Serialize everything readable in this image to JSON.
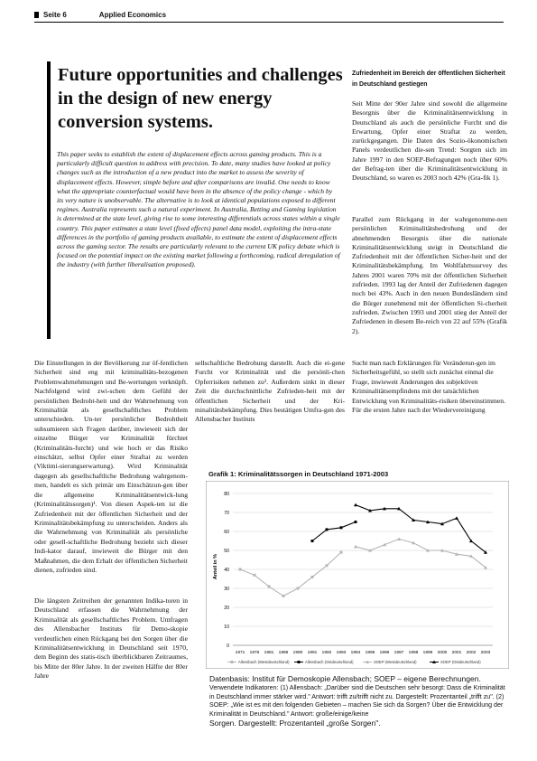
{
  "header": {
    "page": "Seite 6",
    "publication": "Applied Economics"
  },
  "article": {
    "title": "Future opportunities and challenges in the design of new energy conversion systems.",
    "abstract": "This paper seeks to establish the extent of displacement effects across gaming products. This is a particularly difficult question to address with precision. To date, many studies have looked at policy changes such as the introduction of a new product into the market to assess the severity of displacement effects. However, simple before and after comparisons are invalid. One needs to know what the appropriate counterfactual would have been in the absence of the policy change - which by its very nature is unobservable. The alternative is to look at identical populations exposed to different regimes.  Australia represents such a natural experiment. In Australia, Betting and Gaming legislation is determined at the state level, giving rise to some interesting differentials across states within a single country. This paper estimates a state level (fixed effects) panel data model, exploiting the intra-state differences in the portfolio of gaming products available, to estimate the extent of displacement effects across the gaming sector. The results are particularly relevant to the current UK policy debate which is focused on the potential impact on the existing market following a forthcoming, radical deregulation of the industry (with further liberalisation proposed)."
  },
  "right_column": {
    "heading": "Zufriedenheit im Bereich der öffentlichen Sicherheit in Deutschland gestiegen",
    "para1": "Seit Mitte der 90er Jahre sind sowohl die allgemeine Besorgnis über die Kriminalitätsentwicklung in Deutschland als auch die persönliche Furcht und die Erwartung, Opfer einer Straftat zu werden, zurückgegangen. Die Daten des Sozio-ökonomischen Panels verdeutlichen die-sen Trend: Sorgten sich im Jahre 1997 in den SOEP-Befragungen noch über 60% der Befrag-ten über die Kriminalitätsentwicklung in Deutschland, so waren es 2003 noch 42% (Gra-fik 1).",
    "para2": "Parallel zum Rückgang in der wahrgenomme-nen persönlichen Kriminalitätsbedrohung und der abnehmenden Besorgnis über die nationale Kriminalitätsentwicklung steigt in Deutschland die Zufriedenheit mit der öffentlichen Sicher-heit und der Kriminalitätsbekämpfung. Im Wohlfahrtssurvey des Jahres 2001 waren 70% mit der öffentlichen Sicherheit zufrieden. 1993 lag der Anteil der Zufriedenen dagegen noch bei 43%. Auch in den neuen Bundesländern sind die Bürger zunehmend mit der öffentlichen Si-cherheit zufrieden. Zwischen 1993 und 2001 stieg der Anteil der Zufriedenen in diesem Be-reich von 22 auf 55% (Grafik 2)."
  },
  "body": {
    "col1_p1": "Die Einstellungen in der Bevölkerung zur öf-fentlichen Sicherheit sind eng mit kriminalitäts-bezogenen Problemwahrnehmungen und Be-wertungen verknüpft. Nachfolgend wird zwi-schen dem Gefühl der persönlichen Bedroht-heit und der Wahrnehmung von Kriminalität als gesellschaftliches Problem unterschieden. Un-ter persönlicher Bedrohtheit subsumieren sich Fragen darüber, inwieweit sich der einzelne Bürger vor Kriminalität fürchtet (Kriminalitäts-furcht) und wie hoch er das Risiko einschätzt, selbst Opfer einer Straftat zu werden (Viktimi-sierungserwartung). Wird Kriminalität dagegen als gesellschaftliche Bedrohung wahrgenom-men, handelt es sich primär um Einschätzun-gen über die allgemeine Kriminalitätsentwick-lung (Kriminalitätssorgen)¹. Von diesen Aspek-ten ist die Zufriedenheit mit der öffentlichen Sicherheit und der Kriminalitätsbekämpfung zu unterscheiden. Anders als die Wahrnehmung von Kriminalität als persönliche oder gesell-schaftliche Bedrohung bezieht sich dieser Indi-kator darauf, inwieweit die Bürger mit den Maßnahmen, die dem Erhalt der öffentlichen Sicherheit dienen, zufrieden sind.",
    "col1_p2": "Die längsten Zeitreihen der genannten Indika-toren in Deutschland erfassen die Wahrnehmung der Kriminalität als gesellschaftliches Problem. Umfragen des Allensbacher Instituts für Demo-skopie verdeutlichen einen Rückgang bei den Sorgen über die Kriminalitätsentwicklung in Deutschland seit 1970, dem Beginn des statis-tisch überblickbaren Zeitraumes, bis Mitte der 80er Jahre. In der zweiten Hälfte der 80er Jahre",
    "col2_p1": "sellschaftliche Bedrohung darstellt. Auch die ei-gene Furcht vor Kriminalität und die persönli-chen Opferrisiken nehmen zu². Außerdem sinkt in dieser Zeit die durchschnittliche Zufrieden-heit mit der öffentlichen Sicherheit und der Kri-minalitätsbekämpfung. Dies bestätigen Umfra-gen des Allensbacher Instituts",
    "col3_p1": "Sucht man nach Erklärungen für Veränderun-gen im Sicherheitsgefühl, so stellt sich zunächst einmal die Frage, inwieweit Änderungen des subjektiven Kriminalitätsempfindens mit der tatsächlichen Entwicklung von Kriminalitäts-risiken übereinstimmen. Für die ersten Jahre nach der Wiedervereinigung"
  },
  "chart": {
    "title": "Grafik 1: Kriminalitätssorgen in Deutschland 1971-2003"
  },
  "chart_data": {
    "type": "line",
    "title": "Grafik 1: Kriminalitätssorgen in Deutschland 1971-2003",
    "ylabel": "Anteil in %",
    "xlabel": "",
    "ylim": [
      0,
      80
    ],
    "yticks": [
      "0",
      "10",
      "20",
      "30",
      "40",
      "50",
      "60",
      "70",
      "80"
    ],
    "xtick_labels": [
      "1971",
      "1976",
      "1981",
      "1986",
      "1990",
      "1991",
      "1992",
      "1993",
      "1994",
      "1995",
      "1996",
      "1997",
      "1998",
      "1999",
      "2000",
      "2001",
      "2002",
      "2003"
    ],
    "grid": "horizontal",
    "legend_position": "bottom",
    "series": [
      {
        "name": "Allensbach (Westdeutschland)",
        "color": "#b5b5b5",
        "marker": "square",
        "values": [
          40,
          37,
          31,
          26,
          30,
          36,
          42,
          49,
          null,
          null,
          null,
          null,
          null,
          null,
          null,
          null,
          null,
          null
        ]
      },
      {
        "name": "Allensbach (Ostdeutschland)",
        "color": "#000000",
        "marker": "square",
        "values": [
          null,
          null,
          null,
          null,
          null,
          55,
          61,
          62,
          65,
          null,
          null,
          null,
          null,
          null,
          null,
          null,
          null,
          null
        ]
      },
      {
        "name": "SOEP (Westdeutschland)",
        "color": "#b5b5b5",
        "marker": "triangle",
        "values": [
          null,
          null,
          null,
          null,
          null,
          null,
          null,
          null,
          52,
          50,
          53,
          56,
          54,
          50,
          50,
          48,
          47,
          41
        ]
      },
      {
        "name": "SOEP (Ostdeutschland)",
        "color": "#000000",
        "marker": "triangle",
        "values": [
          null,
          null,
          null,
          null,
          null,
          null,
          null,
          null,
          74,
          71,
          72,
          72,
          66,
          65,
          64,
          67,
          55,
          49
        ]
      }
    ]
  },
  "caption": {
    "line1": "Datenbasis: Institut für Demoskopie Allensbach; SOEP – eigene Berechnungen.",
    "line2": "Verwendete Indikatoren: (1) Allensbach: „Darüber sind die Deutschen sehr besorgt: Dass die Kriminalität in Deutschland immer stärker wird.\" Antwort: trifft zu/trifft nicht zu. Dargestellt: Prozentanteil „trifft zu\". (2) SOEP: „Wie ist es mit den folgenden Gebieten – machen Sie sich da Sorgen? Über die Entwicklung der Kriminalität in Deutschland.\" Antwort: große/einige/keine",
    "line3": "Sorgen. Dargestellt: Prozentanteil „große Sorgen\"."
  }
}
